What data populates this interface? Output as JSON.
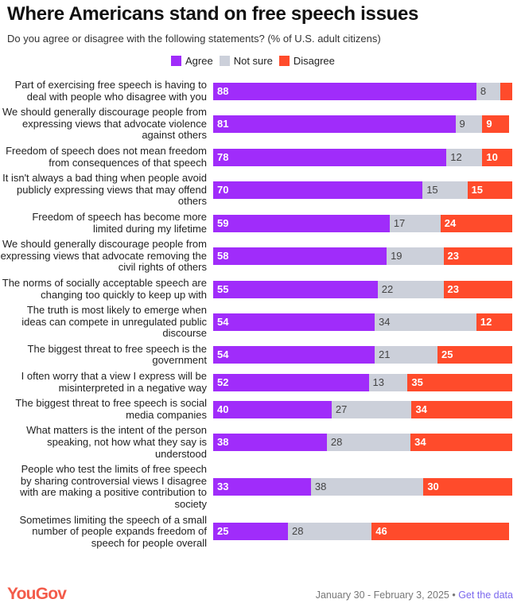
{
  "chart_data": {
    "type": "bar",
    "orientation": "horizontal-stacked",
    "title": "Where Americans stand on free speech issues",
    "subtitle": "Do you agree or disagree with the following statements? (% of U.S. adult citizens)",
    "legend": [
      "Agree",
      "Not sure",
      "Disagree"
    ],
    "colors": {
      "Agree": "#a02cfa",
      "Not sure": "#ccd0da",
      "Disagree": "#ff4b2b"
    },
    "categories": [
      "Part of exercising free speech is having to deal with people who disagree with you",
      "We should generally discourage people from expressing views that advocate violence against others",
      "Freedom of speech does not mean freedom from consequences of that speech",
      "It isn't always a bad thing when people avoid publicly expressing views that may offend others",
      "Freedom of speech has become more limited during my lifetime",
      "We should generally discourage people from expressing views that advocate removing the civil rights of others",
      "The norms of socially acceptable speech are changing too quickly to keep up with",
      "The truth is most likely to emerge when ideas can compete in unregulated public discourse",
      "The biggest threat to free speech is the government",
      "I often worry that a view I express will be misinterpreted in a negative way",
      "The biggest threat to free speech is social media companies",
      "What matters is the intent of the person speaking, not how what they say is understood",
      "People who test the limits of free speech by sharing controversial views I disagree with are making a positive contribution to society",
      "Sometimes limiting the speech of a small number of people expands freedom of speech for people overall"
    ],
    "series": [
      {
        "name": "Agree",
        "values": [
          88,
          81,
          78,
          70,
          59,
          58,
          55,
          54,
          54,
          52,
          40,
          38,
          33,
          25
        ]
      },
      {
        "name": "Not sure",
        "values": [
          8,
          9,
          12,
          15,
          17,
          19,
          22,
          34,
          21,
          13,
          27,
          28,
          38,
          28
        ]
      },
      {
        "name": "Disagree",
        "values": [
          4,
          9,
          10,
          15,
          24,
          23,
          23,
          12,
          25,
          35,
          34,
          34,
          30,
          46
        ]
      }
    ],
    "xlim": [
      0,
      100
    ]
  },
  "footer": {
    "logo": "YouGov",
    "date": "January 30 - February 3, 2025",
    "separator": " • ",
    "link": "Get the data"
  }
}
